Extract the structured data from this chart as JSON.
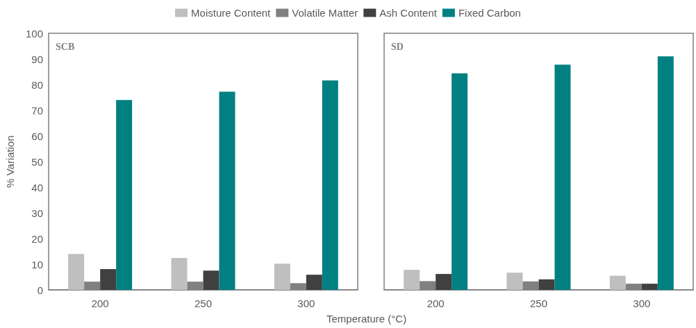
{
  "chart_data": [
    {
      "type": "bar",
      "title": "SCB",
      "xlabel": "Temperature (°C)",
      "ylabel": "% Variation",
      "categories": [
        "200",
        "250",
        "300"
      ],
      "series": [
        {
          "name": "Moisture Content",
          "color": "#bfbfbf",
          "values": [
            14.0,
            12.4,
            10.2
          ]
        },
        {
          "name": "Volatile Matter",
          "color": "#808080",
          "values": [
            3.2,
            3.2,
            2.6
          ]
        },
        {
          "name": "Ash Content",
          "color": "#404040",
          "values": [
            8.1,
            7.5,
            5.9
          ]
        },
        {
          "name": "Fixed Carbon",
          "color": "#008080",
          "values": [
            74.0,
            77.2,
            81.6
          ]
        }
      ],
      "ylim": [
        0,
        100
      ],
      "yticks": [
        0,
        10,
        20,
        30,
        40,
        50,
        60,
        70,
        80,
        90,
        100
      ],
      "grid": false,
      "legend": "top"
    },
    {
      "type": "bar",
      "title": "SD",
      "categories": [
        "200",
        "250",
        "300"
      ],
      "series": [
        {
          "color": "#bfbfbf",
          "values": [
            7.8,
            6.7,
            5.5
          ]
        },
        {
          "color": "#808080",
          "values": [
            3.4,
            3.3,
            2.4
          ]
        },
        {
          "color": "#404040",
          "values": [
            6.2,
            4.1,
            2.4
          ]
        },
        {
          "color": "#008080",
          "values": [
            84.4,
            87.8,
            91.0
          ]
        }
      ],
      "ylim": [
        0,
        100
      ],
      "yticks": [
        0,
        10,
        20,
        30,
        40,
        50,
        60,
        70,
        80,
        90,
        100
      ],
      "grid": false,
      "legend": false,
      "tick_labels": "x"
    }
  ]
}
